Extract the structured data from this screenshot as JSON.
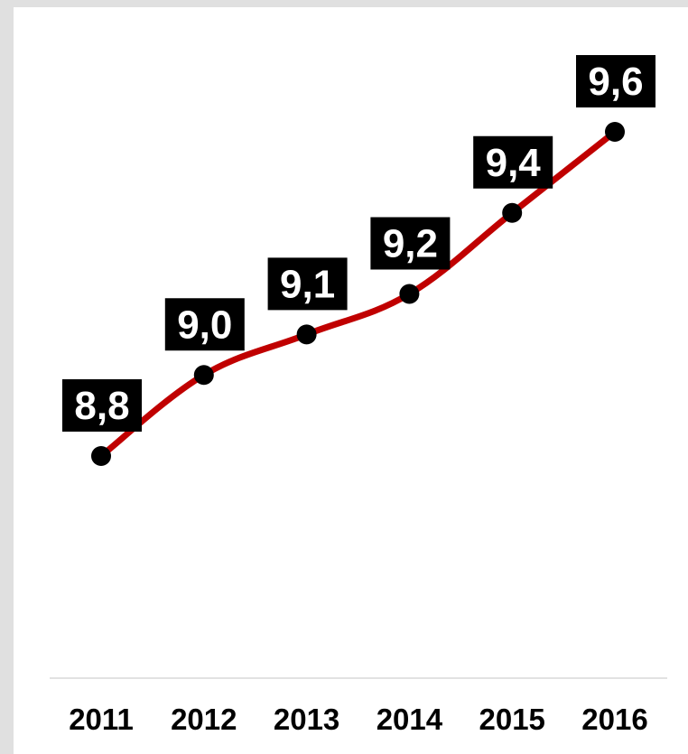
{
  "chart_data": {
    "type": "line",
    "categories": [
      "2011",
      "2012",
      "2013",
      "2014",
      "2015",
      "2016"
    ],
    "values": [
      8.8,
      9.0,
      9.1,
      9.2,
      9.4,
      9.6
    ],
    "data_labels": [
      "8,8",
      "9,0",
      "9,1",
      "9,2",
      "9,4",
      "9,6"
    ],
    "title": "",
    "xlabel": "",
    "ylabel": "",
    "ylim": [
      8.0,
      9.65
    ],
    "grid": false,
    "legend": "none",
    "colors": {
      "line": "#c00000",
      "marker": "#000000",
      "label_background": "#000000",
      "label_text": "#ffffff",
      "axis": "#d9d9d9",
      "background": "#ffffff",
      "frame": "#e0e0e0"
    }
  }
}
